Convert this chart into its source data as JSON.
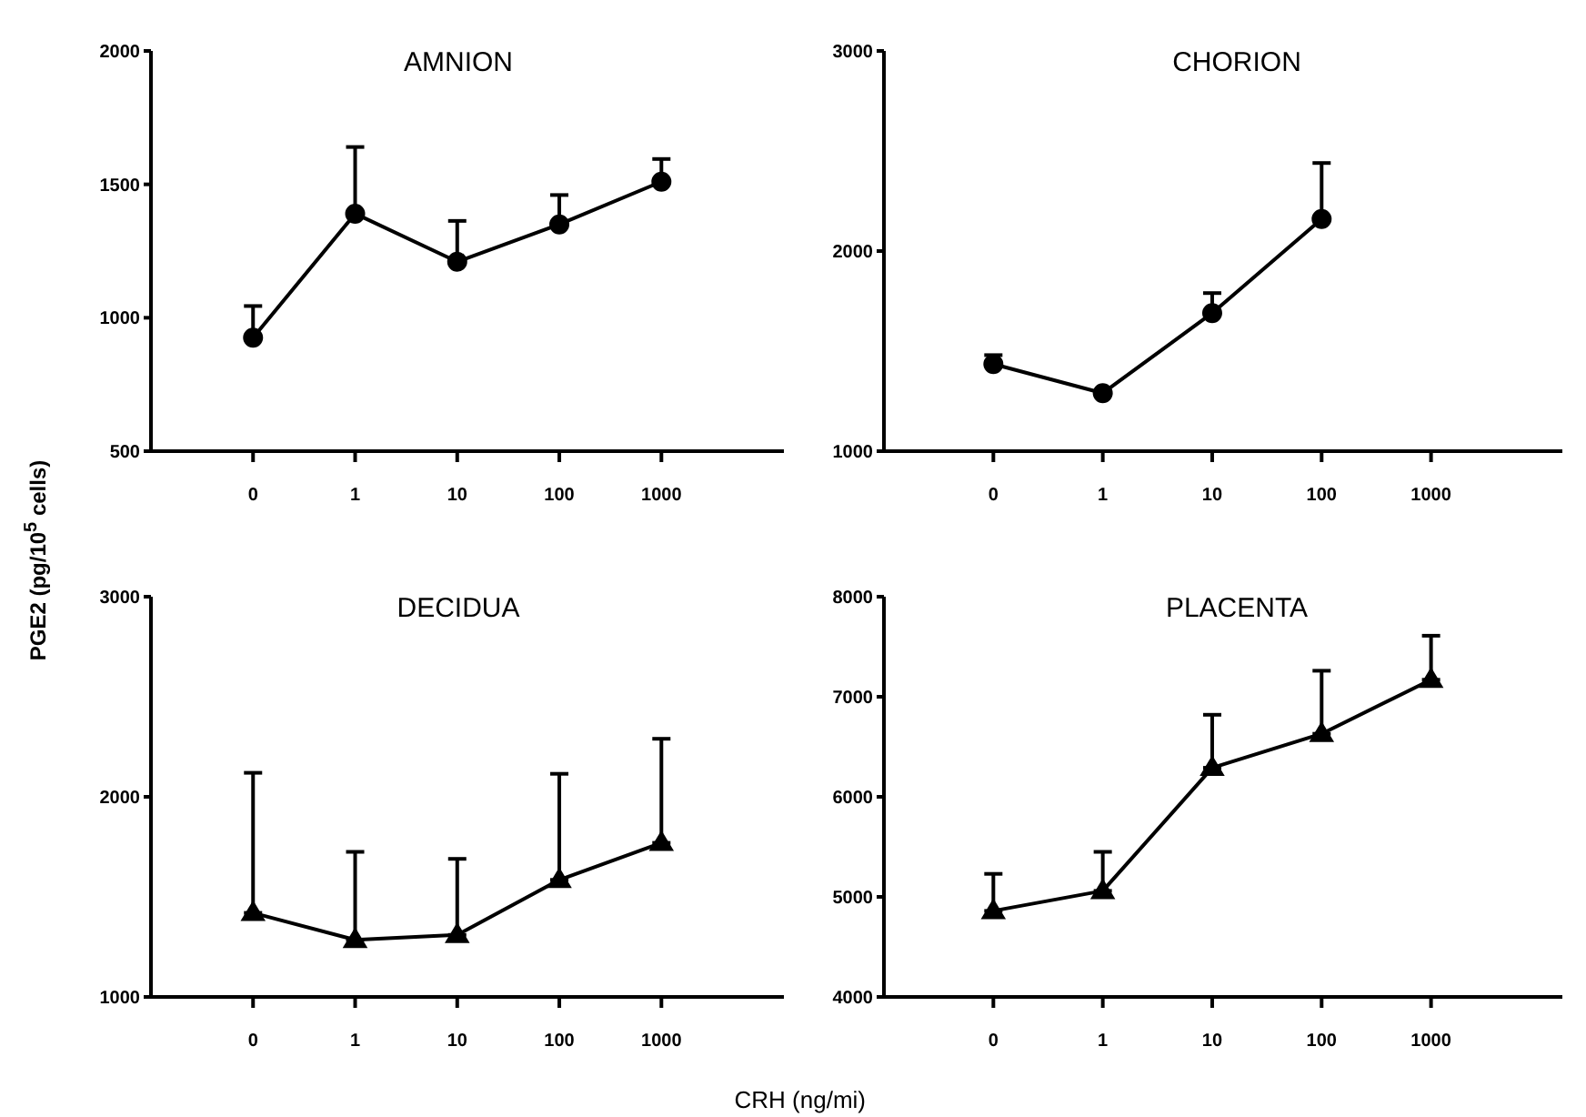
{
  "chart_data": [
    {
      "type": "line",
      "title": "AMNION",
      "ylabel": "PGE2 (pg/10$^{5}$ cells)",
      "categories": [
        "0",
        "1",
        "10",
        "100",
        "1000"
      ],
      "values": [
        925,
        1390,
        1210,
        1350,
        1510
      ],
      "errors": [
        [
          925,
          1044
        ],
        [
          1390,
          1640
        ],
        [
          1210,
          1363
        ],
        [
          1350,
          1460
        ],
        [
          1510,
          1595
        ]
      ],
      "color": "#000000",
      "marker": "circle",
      "ylim": [
        500,
        2000
      ],
      "yticks": [
        500,
        1000,
        1500,
        2000
      ]
    },
    {
      "type": "line",
      "title": "CHORION",
      "categories": [
        "0",
        "1",
        "10",
        "100",
        "1000"
      ],
      "values": [
        1435,
        1290,
        1690,
        2160,
        null
      ],
      "errors": [
        [
          1435,
          1480
        ],
        null,
        [
          1690,
          1790
        ],
        [
          2160,
          2440
        ],
        null
      ],
      "color": "#000000",
      "marker": "circle",
      "ylim": [
        1000,
        3000
      ],
      "yticks": [
        1000,
        2000,
        3000
      ]
    },
    {
      "type": "line",
      "title": "DECIDUA",
      "xlabel": "CRH (ng/mi)",
      "categories": [
        "0",
        "1",
        "10",
        "100",
        "1000"
      ],
      "values": [
        1420,
        1285,
        1310,
        1585,
        1770
      ],
      "errors": [
        [
          1420,
          2120
        ],
        [
          1285,
          1725
        ],
        [
          1310,
          1690
        ],
        [
          1585,
          2115
        ],
        [
          1770,
          2290
        ]
      ],
      "color": "#000000",
      "marker": "triangle",
      "ylim": [
        1000,
        3000
      ],
      "yticks": [
        1000,
        2000,
        3000
      ]
    },
    {
      "type": "line",
      "title": "PLACENTA",
      "categories": [
        "0",
        "1",
        "10",
        "100",
        "1000"
      ],
      "values": [
        4860,
        5060,
        6290,
        6630,
        7170
      ],
      "errors": [
        [
          4860,
          5230
        ],
        [
          5060,
          5450
        ],
        [
          6290,
          6820
        ],
        [
          6630,
          7260
        ],
        [
          7170,
          7610
        ]
      ],
      "color": "#000000",
      "marker": "triangle",
      "ylim": [
        4000,
        8000
      ],
      "yticks": [
        4000,
        5000,
        6000,
        7000,
        8000
      ]
    }
  ]
}
